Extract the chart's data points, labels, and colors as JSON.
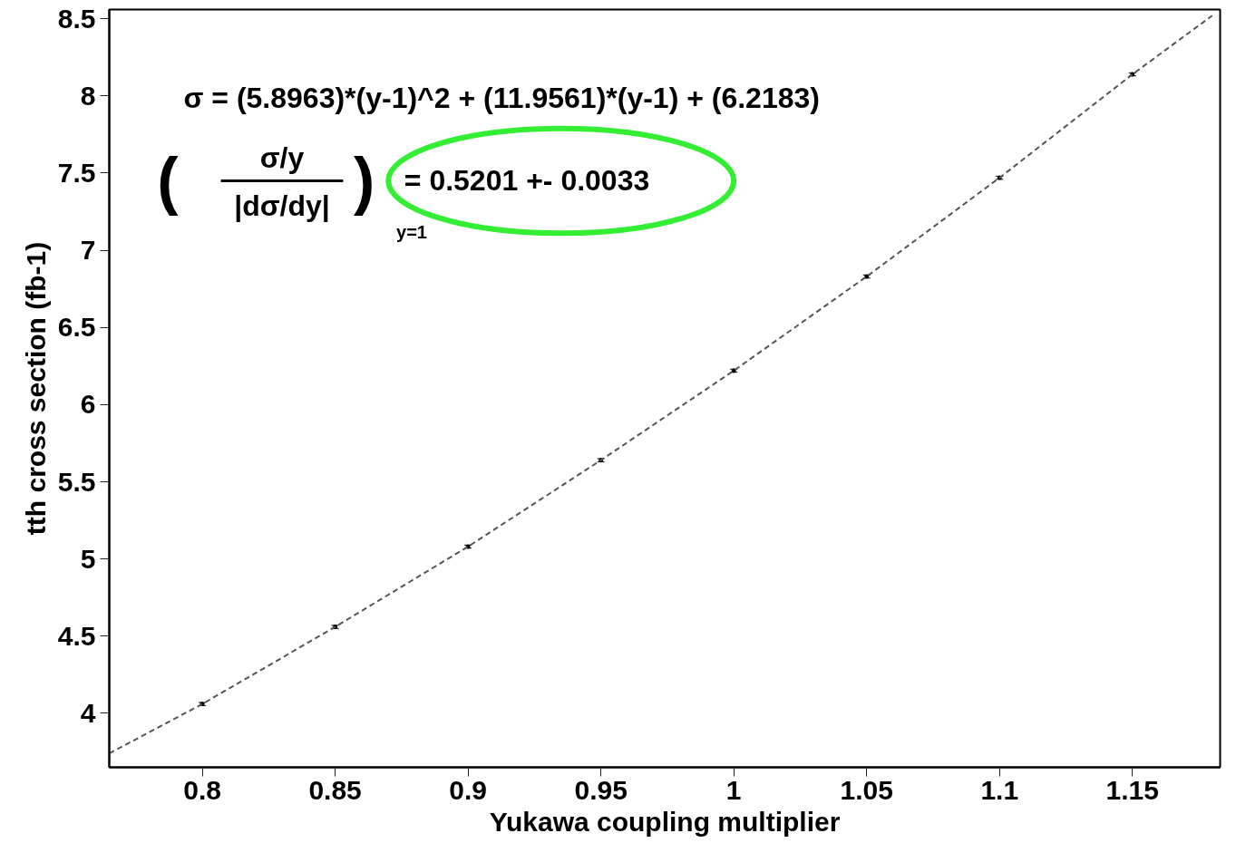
{
  "chart_data": {
    "type": "scatter",
    "xlabel": "Yukawa coupling multiplier",
    "ylabel": "tth cross section (fb-1)",
    "xlim": [
      0.765,
      1.183
    ],
    "ylim": [
      3.65,
      8.56
    ],
    "xticks": [
      0.8,
      0.85,
      0.9,
      0.95,
      1,
      1.05,
      1.1,
      1.15
    ],
    "yticks": [
      4,
      4.5,
      5,
      5.5,
      6,
      6.5,
      7,
      7.5,
      8,
      8.5
    ],
    "grid": false,
    "series": [
      {
        "color": "#000000",
        "marker": "circle",
        "x": [
          0.8,
          0.85,
          0.9,
          0.95,
          1,
          1.05,
          1.1,
          1.15
        ],
        "values": [
          4.06,
          4.56,
          5.08,
          5.64,
          6.22,
          6.83,
          7.47,
          8.14
        ],
        "errors": [
          0.01,
          0.01,
          0.01,
          0.01,
          0.01,
          0.01,
          0.01,
          0.01
        ]
      },
      {
        "type": "line",
        "color": "#555555",
        "line_style": "dashed",
        "x": [
          0.765,
          0.8,
          0.85,
          0.9,
          0.95,
          1,
          1.05,
          1.1,
          1.15,
          1.18
        ],
        "values": [
          3.74,
          4.06,
          4.56,
          5.08,
          5.64,
          6.22,
          6.83,
          7.47,
          8.14,
          8.52
        ]
      }
    ],
    "annotations": [
      "σ = (5.8963)*(y-1)^2 + (11.9561)*(y-1) + (6.2183)",
      "(",
      "σ/y",
      "|dσ/dy|",
      ")",
      "y=1",
      "= 0.5201 +- 0.0033"
    ]
  }
}
